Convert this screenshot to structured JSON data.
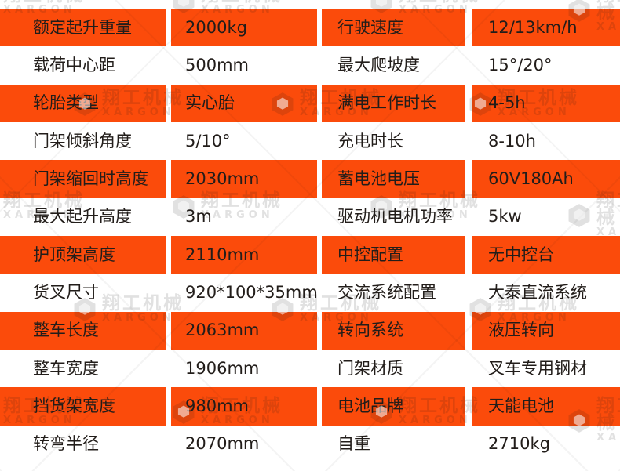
{
  "page": {
    "accent_color": "#fb4b0b",
    "text_color": "#221d1a",
    "background_color": "#ffffff"
  },
  "watermark": {
    "brand_cn": "翔工机械",
    "brand_en": "XARGON",
    "logo_icon": "xargor-cube-logo"
  },
  "spec_table": {
    "rows": [
      {
        "label_left": "额定起升重量",
        "value_left": "2000kg",
        "label_right": "行驶速度",
        "value_right": "12/13km/h",
        "highlighted": true
      },
      {
        "label_left": "载荷中心距",
        "value_left": "500mm",
        "label_right": "最大爬坡度",
        "value_right": "15°/20°",
        "highlighted": false
      },
      {
        "label_left": "轮胎类型",
        "value_left": "实心胎",
        "label_right": "满电工作时长",
        "value_right": "4-5h",
        "highlighted": true
      },
      {
        "label_left": "门架倾斜角度",
        "value_left": "5/10°",
        "label_right": "充电时长",
        "value_right": "8-10h",
        "highlighted": false
      },
      {
        "label_left": "门架缩回时高度",
        "value_left": "2030mm",
        "label_right": "蓄电池电压",
        "value_right": "60V180Ah",
        "highlighted": true
      },
      {
        "label_left": "最大起升高度",
        "value_left": "3m",
        "label_right": "驱动机电机功率",
        "value_right": "5kw",
        "highlighted": false
      },
      {
        "label_left": "护顶架高度",
        "value_left": "2110mm",
        "label_right": "中控配置",
        "value_right": "无中控台",
        "highlighted": true
      },
      {
        "label_left": "货叉尺寸",
        "value_left": "920*100*35mm",
        "label_right": "交流系统配置",
        "value_right": "大泰直流系统",
        "highlighted": false
      },
      {
        "label_left": "整车长度",
        "value_left": "2063mm",
        "label_right": "转向系统",
        "value_right": "液压转向",
        "highlighted": true
      },
      {
        "label_left": "整车宽度",
        "value_left": "1906mm",
        "label_right": "门架材质",
        "value_right": "叉车专用钢材",
        "highlighted": false
      },
      {
        "label_left": "挡货架宽度",
        "value_left": "980mm",
        "label_right": "电池品牌",
        "value_right": "天能电池",
        "highlighted": true
      },
      {
        "label_left": "转弯半径",
        "value_left": "2070mm",
        "label_right": "自重",
        "value_right": "2710kg",
        "highlighted": false
      }
    ]
  }
}
